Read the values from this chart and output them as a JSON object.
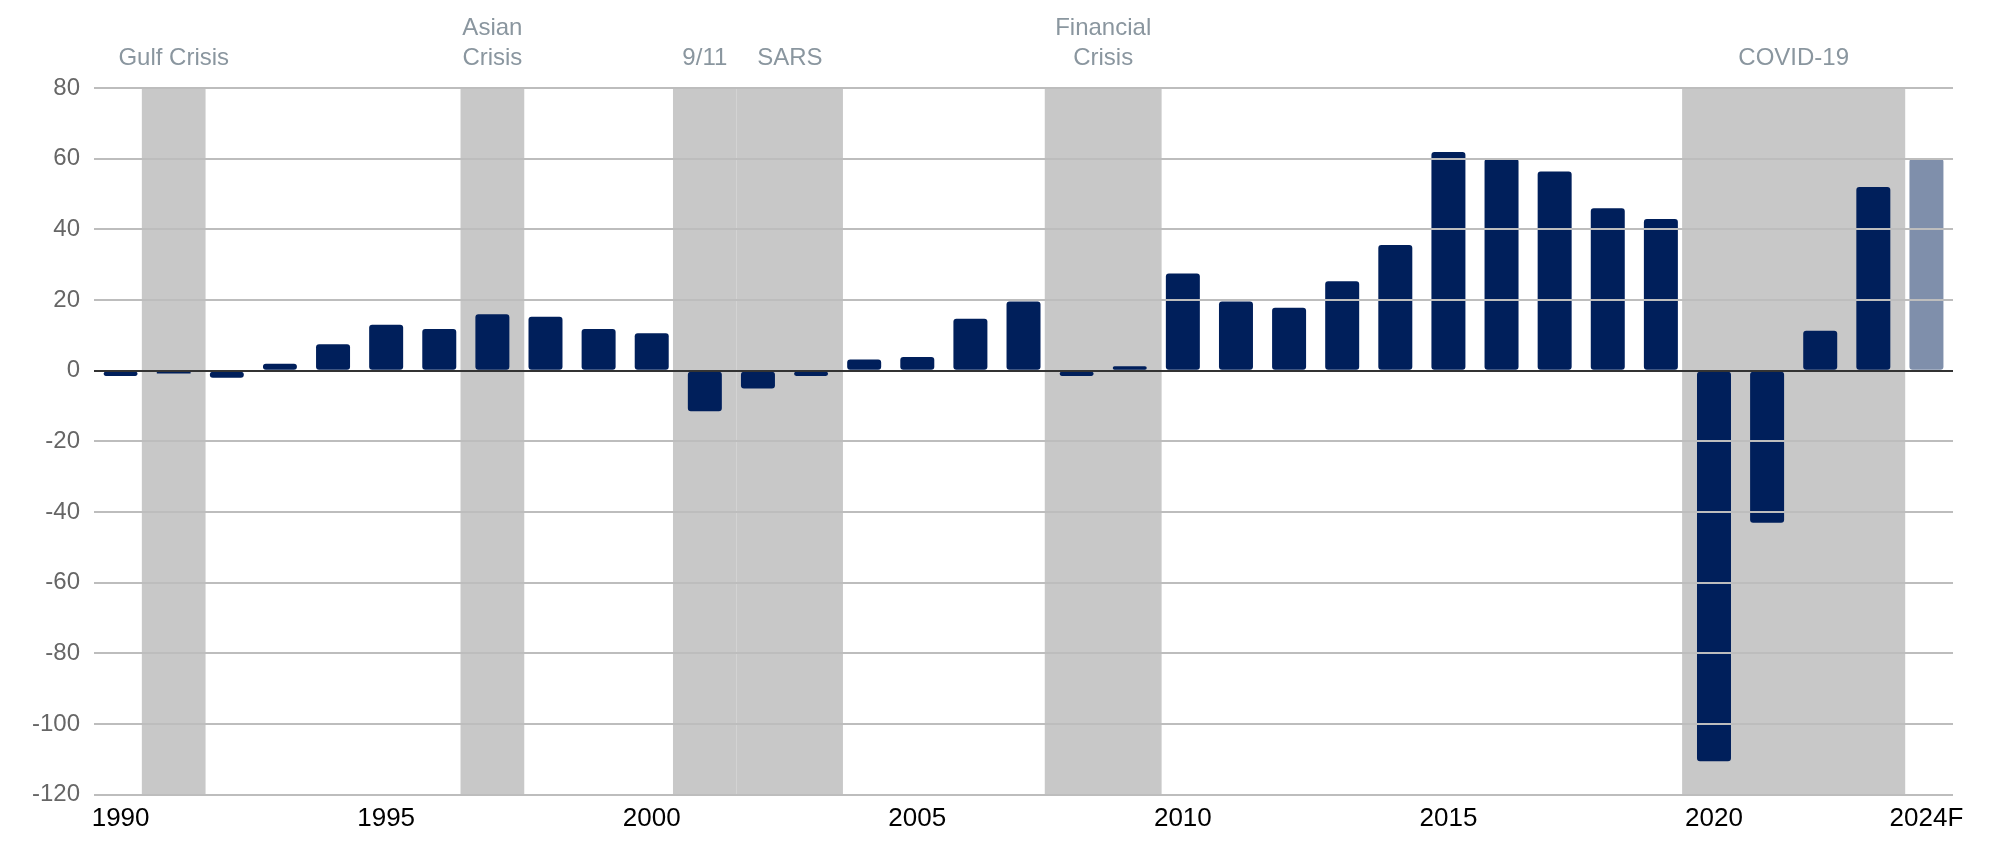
{
  "chart_data": {
    "type": "bar",
    "x": [
      1990,
      1991,
      1992,
      1993,
      1994,
      1995,
      1996,
      1997,
      1998,
      1999,
      2000,
      2001,
      2002,
      2003,
      2004,
      2005,
      2006,
      2007,
      2008,
      2009,
      2010,
      2011,
      2012,
      2013,
      2014,
      2015,
      2016,
      2017,
      2018,
      2019,
      2020,
      2021,
      2022,
      2023,
      2024
    ],
    "values": [
      -1.5,
      -0.8,
      -2,
      2,
      7.5,
      13,
      11.8,
      16,
      15.3,
      11.8,
      10.6,
      -11.5,
      -5,
      -1.5,
      3.2,
      3.9,
      14.7,
      19.6,
      -1.5,
      1.3,
      27.5,
      19.6,
      17.8,
      25.3,
      35.6,
      61.9,
      60,
      56.4,
      46,
      42.9,
      -110.5,
      -43,
      11.3,
      52,
      60
    ],
    "colors": [
      "#001f5b",
      "#001f5b",
      "#001f5b",
      "#001f5b",
      "#001f5b",
      "#001f5b",
      "#001f5b",
      "#001f5b",
      "#001f5b",
      "#001f5b",
      "#001f5b",
      "#001f5b",
      "#001f5b",
      "#001f5b",
      "#001f5b",
      "#001f5b",
      "#001f5b",
      "#001f5b",
      "#001f5b",
      "#001f5b",
      "#001f5b",
      "#001f5b",
      "#001f5b",
      "#001f5b",
      "#001f5b",
      "#001f5b",
      "#001f5b",
      "#001f5b",
      "#001f5b",
      "#001f5b",
      "#001f5b",
      "#001f5b",
      "#001f5b",
      "#001f5b",
      "#7f8fab"
    ],
    "xlim": [
      1989.5,
      2024.5
    ],
    "xticks": [
      1990,
      1995,
      2000,
      2005,
      2010,
      2015,
      2020,
      {
        "value": 2024,
        "label": "2024F"
      }
    ],
    "ylim": [
      -120,
      80
    ],
    "yticks": [
      -120,
      -100,
      -80,
      -60,
      -40,
      -20,
      0,
      20,
      40,
      60,
      80
    ],
    "grid": "y",
    "bands": [
      {
        "axis": "x",
        "from": 1990.4,
        "to": 1991.6,
        "label": "Gulf Crisis",
        "color": "#c8c8c8"
      },
      {
        "axis": "x",
        "from": 1996.4,
        "to": 1997.6,
        "label": "Asian\nCrisis",
        "color": "#c8c8c8"
      },
      {
        "axis": "x",
        "from": 2000.4,
        "to": 2001.6,
        "label": "9/11",
        "color": "#c8c8c8"
      },
      {
        "axis": "x",
        "from": 2001.6,
        "to": 2003.6,
        "label": "SARS",
        "color": "#c8c8c8"
      },
      {
        "axis": "x",
        "from": 2007.4,
        "to": 2009.6,
        "label": "Financial\nCrisis",
        "color": "#c8c8c8"
      },
      {
        "axis": "x",
        "from": 2019.4,
        "to": 2023.6,
        "label": "COVID-19",
        "color": "#c8c8c8"
      }
    ]
  }
}
